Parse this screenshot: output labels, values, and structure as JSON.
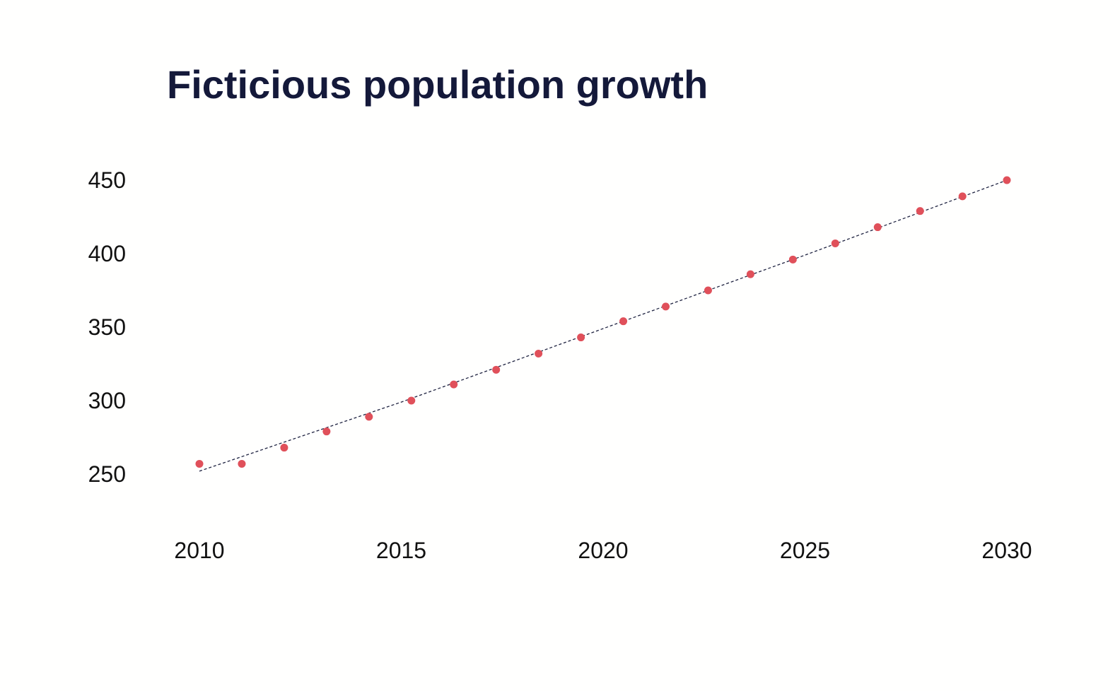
{
  "chart_data": {
    "type": "scatter",
    "title": "Ficticious population growth",
    "xlabel": "",
    "ylabel": "",
    "xlim": [
      2010,
      2030
    ],
    "ylim": [
      250,
      450
    ],
    "x_ticks": [
      "2010",
      "2015",
      "2020",
      "2025",
      "2030"
    ],
    "y_ticks": [
      "450",
      "400",
      "350",
      "300",
      "250"
    ],
    "grid": false,
    "legend": false,
    "point_color": "#e0505a",
    "trend_color": "#1e2240",
    "series": [
      {
        "x": [
          2010.0,
          2011.05,
          2012.1,
          2013.15,
          2014.2,
          2015.25,
          2016.3,
          2017.35,
          2018.4,
          2019.45,
          2020.5,
          2021.55,
          2022.6,
          2023.65,
          2024.7,
          2025.75,
          2026.8,
          2027.85,
          2028.9,
          2030.0
        ],
        "y": [
          257,
          257,
          268,
          279,
          289,
          300,
          311,
          321,
          332,
          343,
          354,
          364,
          375,
          386,
          396,
          407,
          418,
          429,
          439,
          450
        ]
      }
    ],
    "trend": {
      "x": [
        2010,
        2015,
        2020,
        2025,
        2030
      ],
      "y": [
        252,
        299,
        349,
        399,
        450
      ]
    }
  }
}
